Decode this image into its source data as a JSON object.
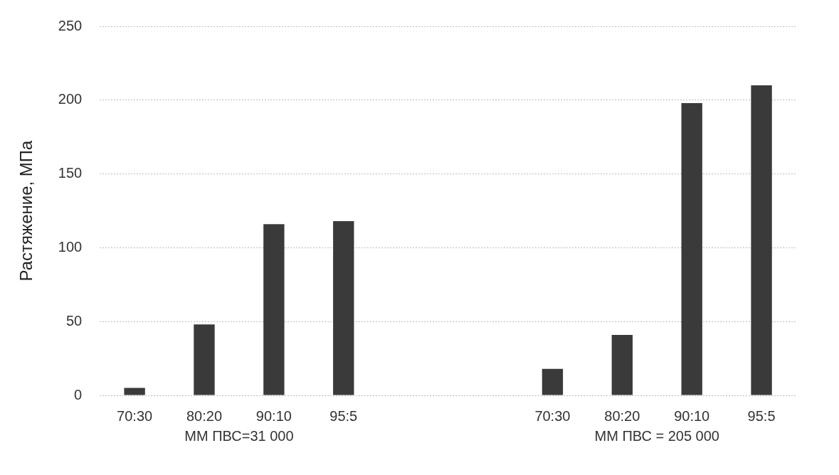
{
  "chart_data": {
    "type": "bar",
    "ylabel": "Растяжение, МПа",
    "categories": [
      "70:30",
      "80:20",
      "90:10",
      "95:5",
      null,
      null,
      "70:30",
      "80:20",
      "90:10",
      "95:5"
    ],
    "values": [
      5,
      48,
      116,
      118,
      null,
      null,
      18,
      41,
      198,
      210
    ],
    "color": "#3a3a3a",
    "ylim": [
      0,
      250
    ],
    "yticks": [
      0,
      50,
      100,
      150,
      200,
      250
    ],
    "grid": "y",
    "annotations": [
      "ММ ПВС=31 000",
      "ММ ПВС = 205 000"
    ]
  }
}
